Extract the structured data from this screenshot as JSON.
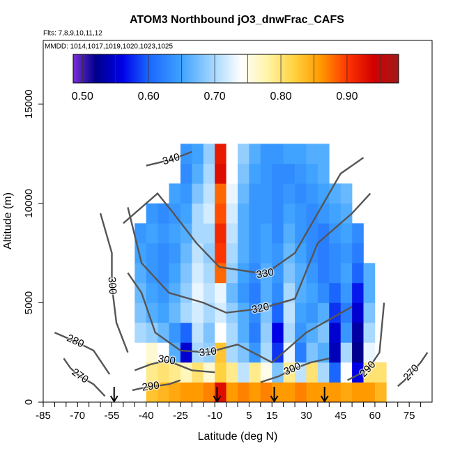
{
  "chart_data": {
    "type": "heatmap",
    "title": "ATOM3 Northbound jO3_dnwFrac_CAFS",
    "subtitle": "Flts: 7,8,9,10,11,12",
    "annotation": "MMDD: 1014,1017,1019,1020,1023,1025",
    "xlabel": "Latitude (deg N)",
    "ylabel": "Altitude (m)",
    "xlim": [
      -85,
      85
    ],
    "ylim": [
      0,
      18200
    ],
    "xticks": [
      -85,
      -70,
      -55,
      -40,
      -25,
      -10,
      5,
      15,
      30,
      45,
      60,
      75
    ],
    "xminorticks": [
      -85,
      -80,
      -75,
      -70,
      -65,
      -60,
      -55,
      -50,
      -45,
      -40,
      -35,
      -30,
      -25,
      -20,
      -15,
      -10,
      -5,
      0,
      5,
      10,
      15,
      20,
      25,
      30,
      35,
      40,
      45,
      50,
      55,
      60,
      65,
      70,
      75,
      80
    ],
    "yticks": [
      0,
      5000,
      10000,
      15000
    ],
    "xbins": [
      -45,
      -40,
      -35,
      -30,
      -25,
      -20,
      -15,
      -10,
      -5,
      0,
      5,
      10,
      15,
      20,
      25,
      30,
      35,
      40,
      45,
      50,
      55,
      60,
      65
    ],
    "ybins": [
      0,
      1000,
      2000,
      3000,
      4000,
      5000,
      6000,
      7000,
      8000,
      9000,
      10000,
      11000,
      12000,
      13000
    ],
    "values": [
      [
        null,
        0.83,
        0.84,
        0.85,
        0.86,
        0.86,
        0.87,
        0.93,
        0.86,
        0.87,
        0.86,
        0.87,
        0.86,
        0.86,
        0.87,
        0.86,
        0.86,
        0.86,
        0.85,
        0.86,
        0.86,
        0.84
      ],
      [
        null,
        0.79,
        0.8,
        0.79,
        0.77,
        0.8,
        0.76,
        0.82,
        0.79,
        0.71,
        0.79,
        0.75,
        0.68,
        0.79,
        0.71,
        0.8,
        0.7,
        0.6,
        0.74,
        0.56,
        0.8,
        0.8
      ],
      [
        null,
        0.76,
        0.74,
        0.66,
        0.55,
        0.7,
        0.69,
        0.83,
        0.7,
        0.68,
        0.64,
        0.7,
        0.58,
        0.73,
        0.62,
        0.68,
        0.66,
        0.54,
        0.7,
        0.52,
        0.73,
        null
      ],
      [
        0.7,
        0.69,
        0.67,
        0.64,
        0.6,
        0.71,
        0.68,
        0.74,
        0.7,
        0.66,
        0.62,
        0.69,
        0.56,
        0.7,
        0.64,
        0.66,
        0.68,
        0.55,
        0.64,
        0.53,
        0.7,
        null
      ],
      [
        0.68,
        0.66,
        0.65,
        0.67,
        0.7,
        0.72,
        0.7,
        0.72,
        0.69,
        0.66,
        0.63,
        0.68,
        0.6,
        0.71,
        0.65,
        0.64,
        0.66,
        0.58,
        0.62,
        0.55,
        0.68,
        null
      ],
      [
        0.67,
        0.65,
        0.64,
        0.66,
        0.69,
        0.73,
        0.71,
        0.73,
        0.67,
        0.64,
        0.62,
        0.66,
        0.63,
        0.7,
        0.66,
        0.65,
        0.63,
        0.6,
        0.64,
        0.57,
        0.66,
        null
      ],
      [
        0.66,
        0.64,
        0.63,
        0.65,
        0.68,
        0.72,
        0.7,
        0.88,
        0.69,
        0.65,
        0.63,
        0.66,
        0.64,
        0.68,
        0.66,
        0.64,
        0.62,
        0.63,
        0.65,
        0.6,
        0.66,
        null
      ],
      [
        0.65,
        0.64,
        0.63,
        0.64,
        0.67,
        0.71,
        0.69,
        0.9,
        0.7,
        0.66,
        0.64,
        0.65,
        0.64,
        0.67,
        0.65,
        0.63,
        0.62,
        0.63,
        0.64,
        0.62,
        null,
        null
      ],
      [
        0.64,
        0.65,
        0.64,
        0.65,
        0.66,
        0.7,
        0.7,
        0.91,
        0.71,
        0.66,
        0.64,
        0.65,
        0.63,
        0.66,
        0.64,
        0.63,
        0.62,
        0.64,
        0.65,
        0.63,
        null,
        null
      ],
      [
        null,
        0.64,
        0.63,
        0.64,
        0.65,
        0.7,
        0.72,
        0.89,
        0.72,
        0.66,
        0.64,
        0.64,
        0.63,
        0.65,
        0.64,
        0.63,
        0.64,
        0.65,
        0.66,
        null,
        null,
        null
      ],
      [
        null,
        null,
        null,
        0.65,
        0.64,
        0.68,
        0.71,
        0.88,
        0.73,
        0.67,
        0.64,
        0.64,
        0.63,
        0.64,
        0.63,
        0.64,
        0.65,
        0.66,
        0.67,
        null,
        null,
        null
      ],
      [
        null,
        null,
        null,
        null,
        0.63,
        0.66,
        0.7,
        0.93,
        0.74,
        0.68,
        0.65,
        0.64,
        0.63,
        0.63,
        0.64,
        0.65,
        0.66,
        null,
        null,
        null,
        null,
        null
      ],
      [
        null,
        null,
        null,
        null,
        0.64,
        0.65,
        0.69,
        0.92,
        0.74,
        0.69,
        0.66,
        0.64,
        0.64,
        0.65,
        0.65,
        0.66,
        0.66,
        null,
        null,
        null,
        null,
        null
      ]
    ],
    "clim": [
      0.486,
      0.978
    ],
    "colorscale": [
      [
        0.486,
        "#7a2fd6"
      ],
      [
        0.52,
        "#00008c"
      ],
      [
        0.56,
        "#0000e6"
      ],
      [
        0.6,
        "#1a66ff"
      ],
      [
        0.65,
        "#3fa3ff"
      ],
      [
        0.7,
        "#a9d9ff"
      ],
      [
        0.74,
        "#ffffff"
      ],
      [
        0.78,
        "#fff3a6"
      ],
      [
        0.82,
        "#ffd23f"
      ],
      [
        0.86,
        "#ff9a00"
      ],
      [
        0.9,
        "#ff3500"
      ],
      [
        0.94,
        "#d20000"
      ],
      [
        0.978,
        "#a11a1a"
      ]
    ],
    "cticks": [
      {
        "value": 0.5,
        "label": "0.50"
      },
      {
        "value": 0.6,
        "label": "0.60"
      },
      {
        "value": 0.7,
        "label": "0.70"
      },
      {
        "value": 0.8,
        "label": "0.80"
      },
      {
        "value": 0.9,
        "label": "0.90"
      }
    ],
    "clines": [
      0.5,
      0.55,
      0.6,
      0.65,
      0.7,
      0.75,
      0.8,
      0.85,
      0.9,
      0.95
    ],
    "contour_color": "#555555",
    "contours": [
      {
        "level": 340,
        "x": [
          -20,
          -29,
          -40
        ],
        "y": [
          12600,
          12200,
          11900
        ]
      },
      {
        "level": 330,
        "x": [
          -50,
          -35,
          -28,
          -18,
          -8,
          12,
          25,
          35,
          45,
          55
        ],
        "y": [
          9000,
          10500,
          9500,
          8000,
          6800,
          6450,
          7500,
          9500,
          11500,
          12300
        ]
      },
      {
        "level": 320,
        "x": [
          -48,
          -42,
          -30,
          -15,
          -5,
          10,
          25,
          35,
          50,
          58
        ],
        "y": [
          9800,
          7000,
          5500,
          5000,
          4500,
          4700,
          5200,
          8000,
          9500,
          10500
        ]
      },
      {
        "level": 310,
        "x": [
          -48,
          -42,
          -36,
          -25,
          -13,
          0,
          15,
          30,
          50
        ],
        "y": [
          6500,
          5500,
          3500,
          2600,
          2500,
          2900,
          2000,
          3500,
          4800
        ]
      },
      {
        "level": 300,
        "x": [
          -60,
          -55,
          -55,
          -53,
          -48
        ],
        "y": [
          9500,
          7500,
          5860,
          4000,
          2500
        ]
      },
      {
        "level": 300,
        "x": [
          -45,
          -38,
          -31,
          -20,
          -10
        ],
        "y": [
          1600,
          1900,
          2100,
          1600,
          1500
        ]
      },
      {
        "level": 300,
        "x": [
          10,
          18,
          24,
          32,
          40
        ],
        "y": [
          1000,
          1300,
          1650,
          2000,
          2200
        ]
      },
      {
        "level": 290,
        "x": [
          -46,
          -42,
          -38,
          -30,
          -25
        ],
        "y": [
          600,
          700,
          770,
          900,
          1100
        ]
      },
      {
        "level": 290,
        "x": [
          48,
          53,
          57,
          62,
          64
        ],
        "y": [
          1100,
          1400,
          1650,
          2500,
          5000
        ]
      },
      {
        "level": 280,
        "x": [
          -80,
          -76,
          -71,
          -63,
          -56
        ],
        "y": [
          3500,
          3300,
          3050,
          2600,
          1400
        ]
      },
      {
        "level": 270,
        "x": [
          -76,
          -73,
          -69,
          -63,
          -58
        ],
        "y": [
          2200,
          1700,
          1300,
          900,
          300
        ]
      },
      {
        "level": 270,
        "x": [
          70,
          73,
          76,
          80,
          83
        ],
        "y": [
          800,
          1100,
          1470,
          2000,
          2500
        ]
      }
    ],
    "arrows_x": [
      -54,
      -9,
      16,
      38
    ]
  }
}
